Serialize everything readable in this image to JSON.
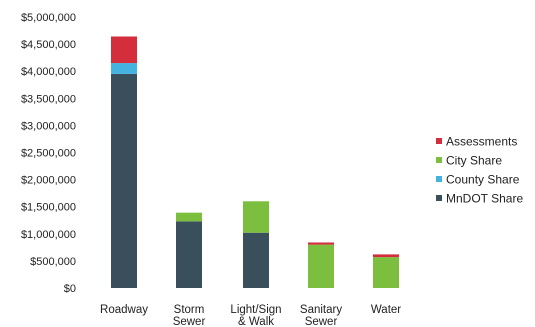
{
  "chart_data": {
    "type": "bar",
    "stacked": true,
    "title": "",
    "xlabel": "",
    "ylabel": "",
    "ylim": [
      0,
      5000000
    ],
    "y_ticks": [
      "$0",
      "$500,000",
      "$1,000,000",
      "$1,500,000",
      "$2,000,000",
      "$2,500,000",
      "$3,000,000",
      "$3,500,000",
      "$4,000,000",
      "$4,500,000",
      "$5,000,000"
    ],
    "categories": [
      [
        "Roadway"
      ],
      [
        "Storm",
        "Sewer"
      ],
      [
        "Light/Sign",
        "& Walk"
      ],
      [
        "Sanitary",
        "Sewer"
      ],
      [
        "Water"
      ]
    ],
    "grid": false,
    "legend_position": "right",
    "series": [
      {
        "name": "MnDOT Share",
        "color": "#3a4f5c",
        "values": [
          3950000,
          1230000,
          1020000,
          0,
          0
        ]
      },
      {
        "name": "County Share",
        "color": "#45b3e0",
        "values": [
          200000,
          0,
          0,
          0,
          0
        ]
      },
      {
        "name": "City Share",
        "color": "#7cbf3f",
        "values": [
          0,
          160000,
          580000,
          800000,
          570000
        ]
      },
      {
        "name": "Assessments",
        "color": "#d42e3c",
        "values": [
          490000,
          0,
          0,
          40000,
          50000
        ]
      }
    ],
    "legend_order": [
      "Assessments",
      "City Share",
      "County Share",
      "MnDOT Share"
    ]
  }
}
